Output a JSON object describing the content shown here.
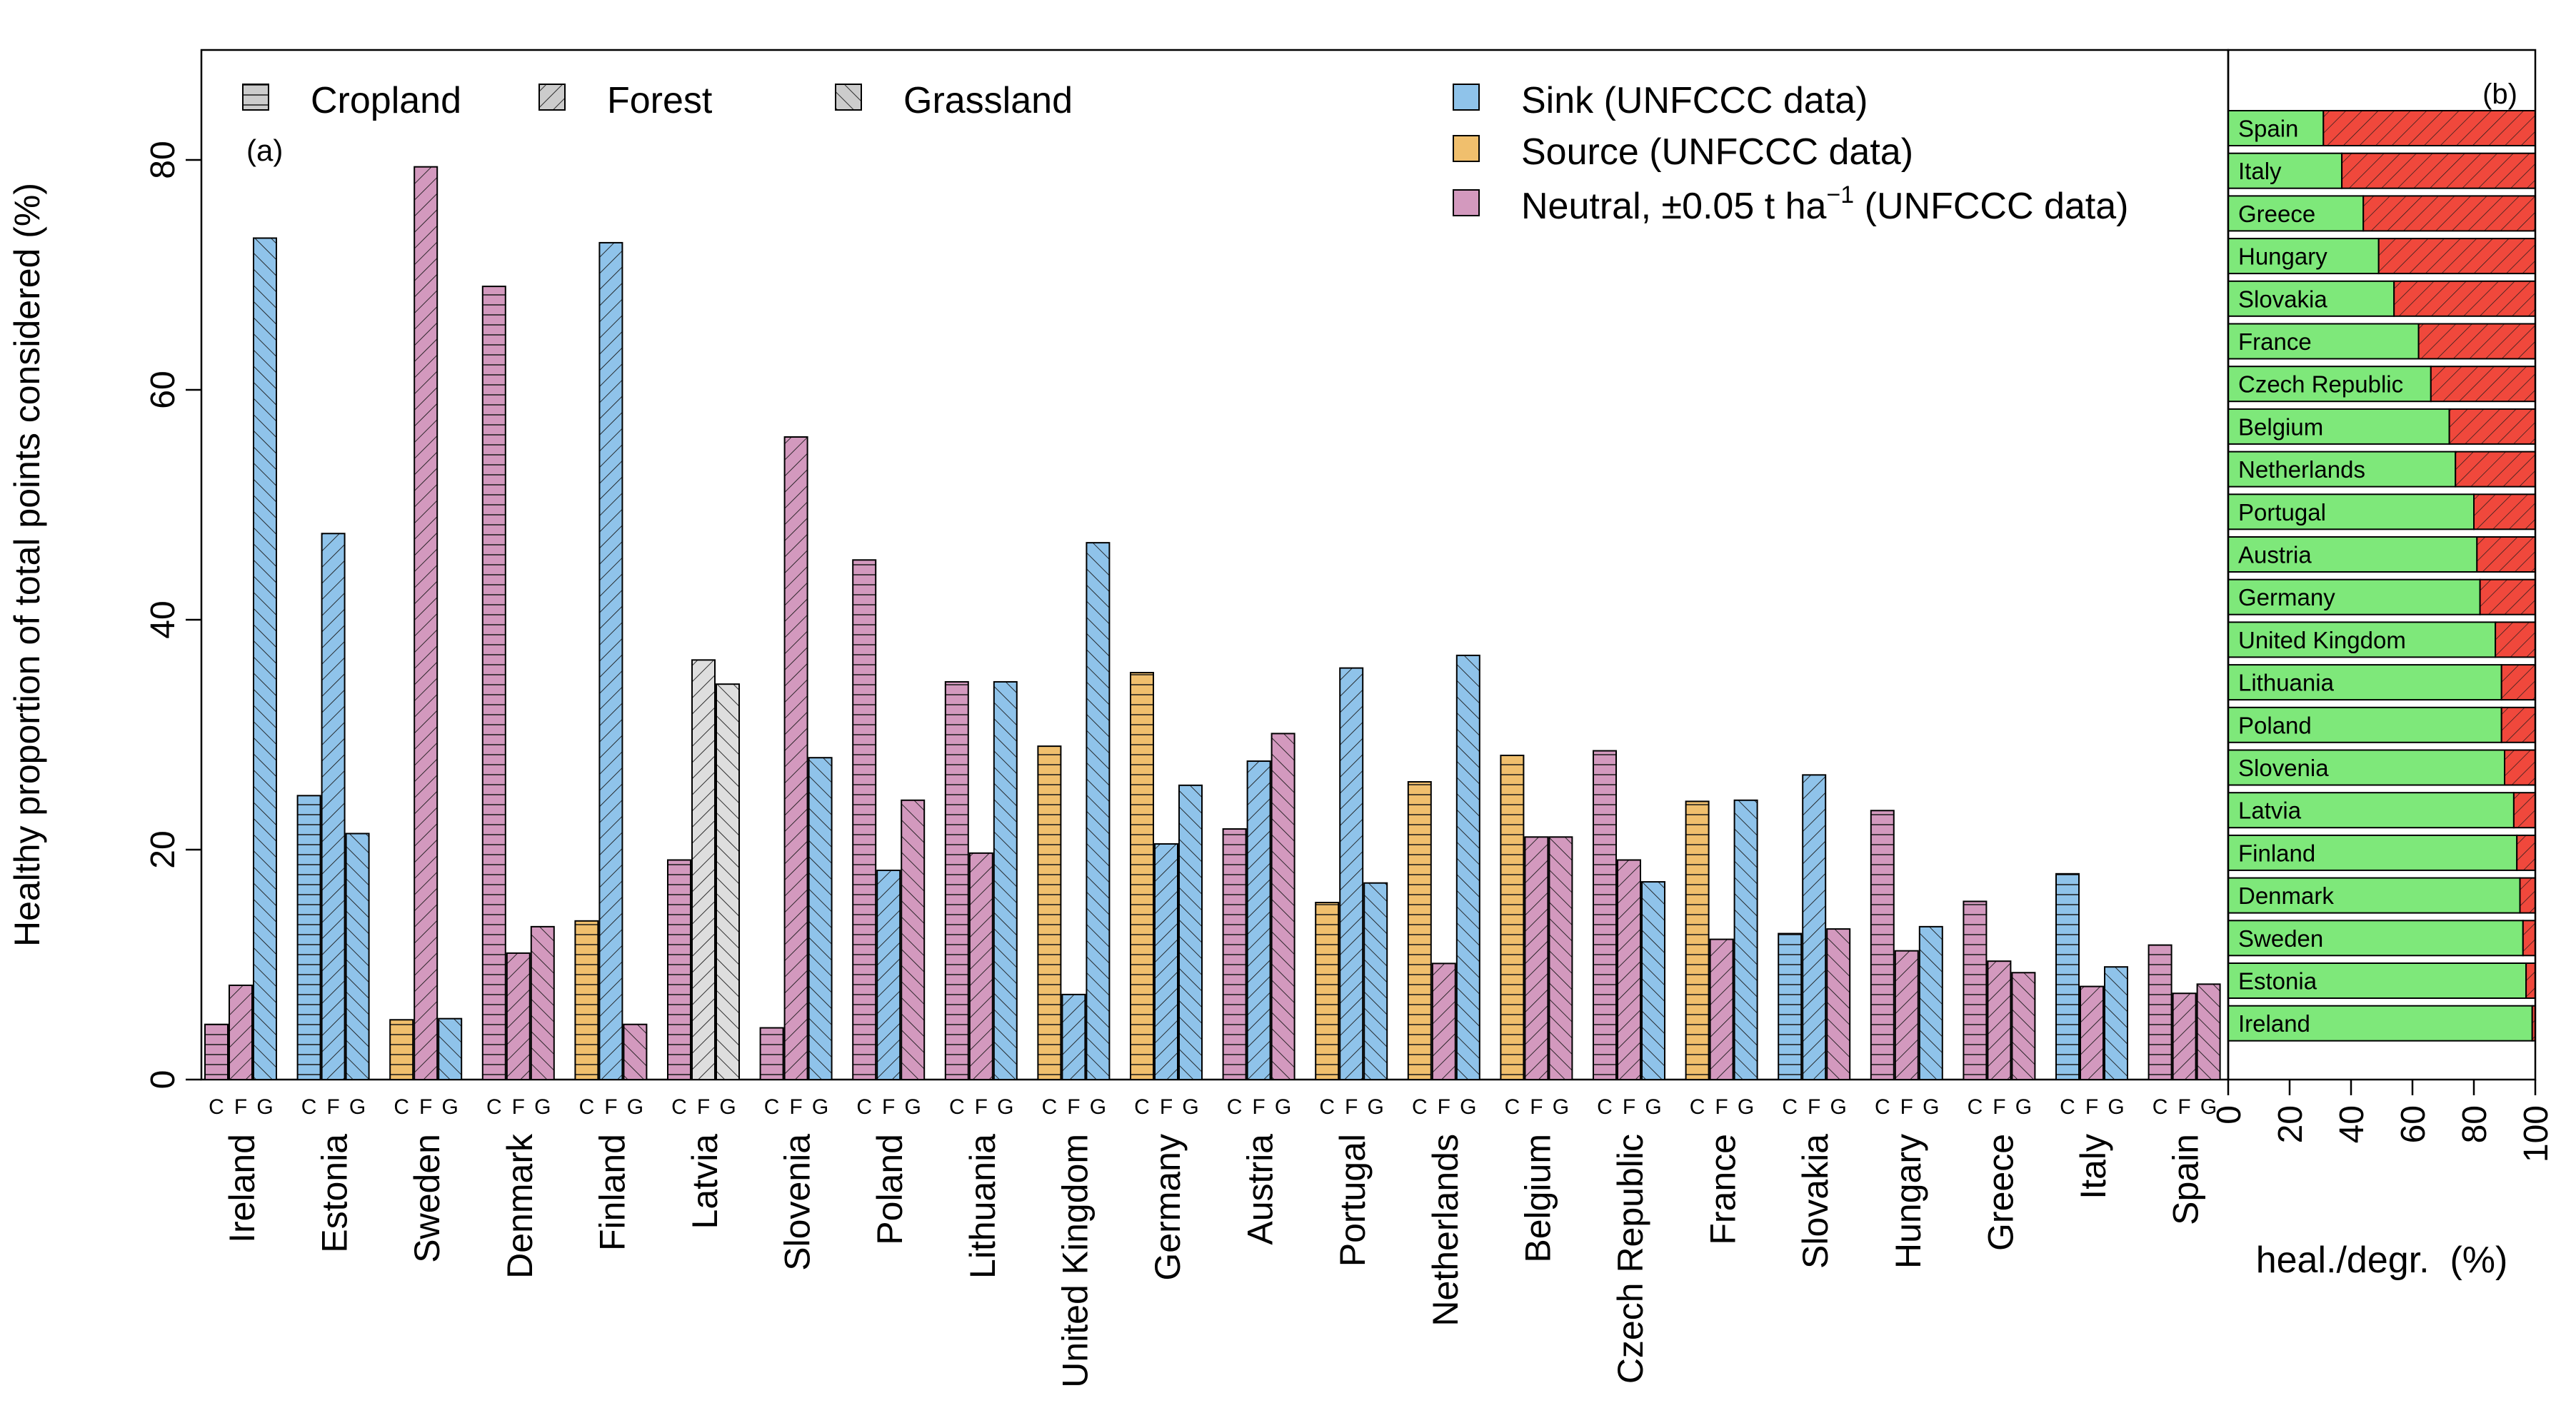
{
  "chart_data": [
    {
      "panel_label": "(a)",
      "type": "bar",
      "ylabel": "Healthy proportion of total points considered (%)",
      "ylim": [
        0,
        90
      ],
      "yticks": [
        0,
        20,
        40,
        60,
        80
      ],
      "group_letters": [
        "C",
        "F",
        "G"
      ],
      "categories": [
        "Ireland",
        "Estonia",
        "Sweden",
        "Denmark",
        "Finland",
        "Latvia",
        "Slovenia",
        "Poland",
        "Lithuania",
        "United Kingdom",
        "Germany",
        "Austria",
        "Portugal",
        "Netherlands",
        "Belgium",
        "Czech Republic",
        "France",
        "Slovakia",
        "Hungary",
        "Greece",
        "Italy",
        "Spain"
      ],
      "series": [
        {
          "name": "Cropland",
          "values": [
            4.8,
            24.7,
            5.2,
            69.0,
            13.8,
            19.1,
            4.5,
            45.2,
            34.6,
            29.0,
            35.4,
            21.8,
            15.4,
            25.9,
            28.2,
            28.6,
            24.2,
            12.7,
            23.4,
            15.5,
            17.9,
            11.7
          ],
          "status": [
            "neutral",
            "sink",
            "source",
            "neutral",
            "source",
            "neutral",
            "neutral",
            "neutral",
            "neutral",
            "source",
            "source",
            "neutral",
            "source",
            "source",
            "source",
            "neutral",
            "source",
            "sink",
            "neutral",
            "neutral",
            "sink",
            "neutral"
          ]
        },
        {
          "name": "Forest",
          "values": [
            8.2,
            47.5,
            79.4,
            11.0,
            72.8,
            36.5,
            55.9,
            18.2,
            19.7,
            7.4,
            20.5,
            27.7,
            35.8,
            10.1,
            21.1,
            19.1,
            12.2,
            26.5,
            11.2,
            10.3,
            8.1,
            7.5
          ],
          "status": [
            "neutral",
            "sink",
            "neutral",
            "neutral",
            "sink",
            "none",
            "neutral",
            "sink",
            "neutral",
            "sink",
            "sink",
            "sink",
            "sink",
            "neutral",
            "neutral",
            "neutral",
            "neutral",
            "sink",
            "neutral",
            "neutral",
            "neutral",
            "neutral"
          ]
        },
        {
          "name": "Grassland",
          "values": [
            73.2,
            21.4,
            5.3,
            13.3,
            4.8,
            34.4,
            28.0,
            24.3,
            34.6,
            46.7,
            25.6,
            30.1,
            17.1,
            36.9,
            21.1,
            17.2,
            24.3,
            13.1,
            13.3,
            9.3,
            9.8,
            8.3
          ],
          "status": [
            "sink",
            "sink",
            "sink",
            "neutral",
            "neutral",
            "none",
            "sink",
            "neutral",
            "sink",
            "sink",
            "sink",
            "neutral",
            "sink",
            "sink",
            "neutral",
            "sink",
            "sink",
            "neutral",
            "sink",
            "neutral",
            "sink",
            "neutral"
          ]
        }
      ],
      "legend_landcover": [
        "Cropland",
        "Forest",
        "Grassland"
      ],
      "legend_status": [
        {
          "key": "sink",
          "label": "Sink (UNFCCC data)",
          "color": "#8fc3ea"
        },
        {
          "key": "source",
          "label": "Source (UNFCCC data)",
          "color": "#f0bf6d"
        },
        {
          "key": "neutral",
          "label": "Neutral, ±0.05 t ha",
          "sup": "−1",
          "label_after": " (UNFCCC data)",
          "color": "#d399be"
        }
      ],
      "colors": {
        "sink": "#8fc3ea",
        "source": "#f0bf6d",
        "neutral": "#d399be",
        "none": "#dedede"
      }
    },
    {
      "panel_label": "(b)",
      "type": "bar",
      "orientation": "horizontal",
      "xlabel": "heal./degr.  (%)",
      "xlim": [
        0,
        100
      ],
      "xticks": [
        0,
        20,
        40,
        60,
        80,
        100
      ],
      "categories": [
        "Spain",
        "Italy",
        "Greece",
        "Hungary",
        "Slovakia",
        "France",
        "Czech Republic",
        "Belgium",
        "Netherlands",
        "Portugal",
        "Austria",
        "Germany",
        "United Kingdom",
        "Lithuania",
        "Poland",
        "Slovenia",
        "Latvia",
        "Finland",
        "Denmark",
        "Sweden",
        "Estonia",
        "Ireland"
      ],
      "series": [
        {
          "name": "healthy",
          "values": [
            31,
            37,
            44,
            49,
            54,
            62,
            66,
            72,
            74,
            80,
            81,
            82,
            87,
            89,
            89,
            90,
            93,
            94,
            95,
            96,
            97,
            99
          ],
          "color": "#7ee87a"
        },
        {
          "name": "degraded",
          "values": [
            69,
            63,
            56,
            51,
            46,
            38,
            34,
            28,
            26,
            20,
            19,
            18,
            13,
            11,
            11,
            10,
            7,
            6,
            5,
            4,
            3,
            1
          ],
          "color": "#f0483c"
        }
      ]
    }
  ]
}
